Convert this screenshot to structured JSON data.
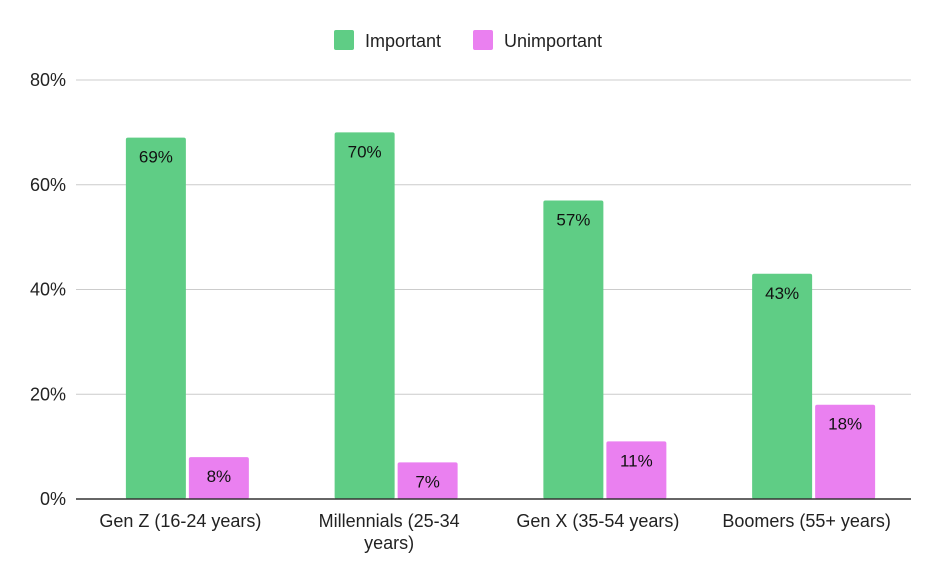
{
  "chart_data": {
    "type": "bar",
    "categories": [
      [
        "Gen Z (16-24 years)"
      ],
      [
        "Millennials (25-34",
        "years)"
      ],
      [
        "Gen X (35-54 years)"
      ],
      [
        "Boomers (55+ years)"
      ]
    ],
    "series": [
      {
        "name": "Important",
        "color": "#5fcd85",
        "values": [
          69,
          70,
          57,
          43
        ],
        "labels": [
          "69%",
          "70%",
          "57%",
          "43%"
        ]
      },
      {
        "name": "Unimportant",
        "color": "#ea80f0",
        "values": [
          8,
          7,
          11,
          18
        ],
        "labels": [
          "8%",
          "7%",
          "11%",
          "18%"
        ]
      }
    ],
    "ylim": [
      0,
      80
    ],
    "yticks": [
      0,
      20,
      40,
      60,
      80
    ],
    "ytick_labels": [
      "0%",
      "20%",
      "40%",
      "60%",
      "80%"
    ],
    "grid": true,
    "legend_position": "top-center",
    "gridline_color": "#cccccc",
    "axis_color": "#333333"
  }
}
